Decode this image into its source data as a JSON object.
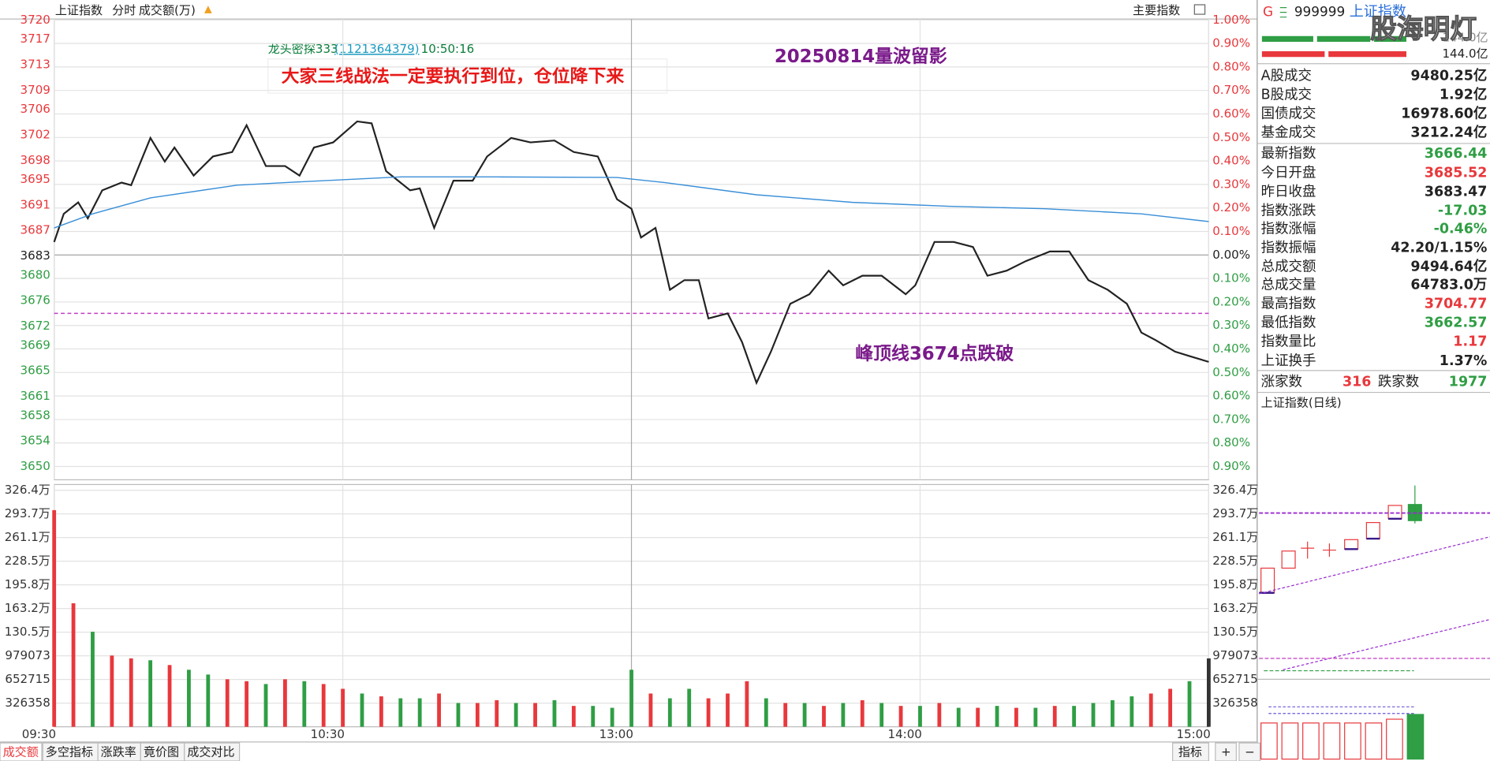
{
  "toolbar": {
    "labels": [
      "上证指数",
      "分时",
      "成交额(万)"
    ],
    "right": "主要指数"
  },
  "quote_header": {
    "flag": "G",
    "code": "999999",
    "name": "上证指数",
    "watermark": "股海明灯",
    "amount": "144.0亿"
  },
  "message": {
    "sender": "龙头密探333",
    "sender_id": "(1121364379)",
    "time": "10:50:16",
    "text": "大家三线战法一定要执行到位，仓位降下来"
  },
  "chart_data": [
    {
      "type": "line",
      "annotations": [
        {
          "text": "20250814量波留影",
          "color": "#7a1a8a"
        },
        {
          "text": "峰顶线3674点跌破",
          "color": "#7a1a8a"
        }
      ],
      "reference_line": {
        "value": 3674,
        "color": "#c23cc2"
      },
      "xlim": [
        0,
        240
      ],
      "ylim": [
        3650,
        3720
      ],
      "yticks": [
        3720,
        3717,
        3713,
        3709,
        3706,
        3702,
        3698,
        3695,
        3691,
        3687,
        3683,
        3680,
        3676,
        3672,
        3669,
        3665,
        3661,
        3658,
        3654,
        3650
      ],
      "y2lim": [
        -0.9,
        1.0
      ],
      "y2ticks": [
        {
          "value": 1.0,
          "label": "1.00%"
        },
        {
          "value": 0.9,
          "label": "0.90%"
        },
        {
          "value": 0.8,
          "label": "0.80%"
        },
        {
          "value": 0.7,
          "label": "0.70%"
        },
        {
          "value": 0.6,
          "label": "0.60%"
        },
        {
          "value": 0.5,
          "label": "0.50%"
        },
        {
          "value": 0.4,
          "label": "0.40%"
        },
        {
          "value": 0.3,
          "label": "0.30%"
        },
        {
          "value": 0.2,
          "label": "0.20%"
        },
        {
          "value": 0.1,
          "label": "0.10%"
        },
        {
          "value": 0,
          "label": "0.00%"
        },
        {
          "value": -0.1,
          "label": "0.10%"
        },
        {
          "value": -0.2,
          "label": "0.20%"
        },
        {
          "value": -0.3,
          "label": "0.30%"
        },
        {
          "value": -0.4,
          "label": "0.40%"
        },
        {
          "value": -0.5,
          "label": "0.50%"
        },
        {
          "value": -0.6,
          "label": "0.60%"
        },
        {
          "value": -0.7,
          "label": "0.70%"
        },
        {
          "value": -0.8,
          "label": "0.80%"
        },
        {
          "value": -0.9,
          "label": "0.90%"
        }
      ],
      "up_color": "#e8383c",
      "down_color": "#2f9e44",
      "grid": true,
      "series": [
        {
          "color": "#222222",
          "x": [
            0,
            2,
            5,
            7,
            10,
            14,
            16,
            20,
            23,
            25,
            29,
            33,
            37,
            40,
            44,
            48,
            51,
            54,
            58,
            63,
            66,
            69,
            74,
            76,
            79,
            83,
            87,
            90,
            95,
            99,
            104,
            108,
            113,
            117,
            120,
            122,
            125,
            128,
            131,
            134,
            136,
            140,
            143,
            146,
            149,
            153,
            157,
            161,
            164,
            168,
            172,
            177,
            179,
            183,
            187,
            191,
            194,
            198,
            202,
            207,
            211,
            215,
            219,
            223,
            226,
            229,
            233,
            236,
            240
          ],
          "values": [
            3685.2,
            3689.6,
            3691.4,
            3688.9,
            3693.3,
            3694.5,
            3694.1,
            3701.5,
            3697.8,
            3700.0,
            3695.6,
            3698.6,
            3699.3,
            3703.5,
            3697.1,
            3697.1,
            3695.6,
            3700.0,
            3700.8,
            3704.1,
            3703.8,
            3696.3,
            3693.3,
            3693.6,
            3687.4,
            3694.8,
            3694.8,
            3698.6,
            3701.5,
            3700.8,
            3701.1,
            3699.3,
            3698.6,
            3691.9,
            3690.4,
            3685.9,
            3687.4,
            3677.7,
            3679.2,
            3679.2,
            3673.2,
            3674.0,
            3669.5,
            3663.1,
            3668.0,
            3675.5,
            3677.0,
            3680.7,
            3678.4,
            3679.9,
            3679.9,
            3677.0,
            3678.4,
            3685.2,
            3685.2,
            3684.4,
            3679.9,
            3680.7,
            3682.2,
            3683.7,
            3683.7,
            3679.2,
            3677.7,
            3675.5,
            3671.0,
            3669.8,
            3668.0,
            3667.3,
            3666.4
          ]
        },
        {
          "color": "#3a8fd8",
          "x": [
            0,
            8,
            20,
            38,
            48,
            72,
            92,
            117,
            127,
            146,
            166,
            186,
            206,
            226,
            240
          ],
          "values": [
            3687.4,
            3689.6,
            3692.1,
            3694.1,
            3694.5,
            3695.4,
            3695.4,
            3695.3,
            3694.5,
            3692.6,
            3691.4,
            3690.8,
            3690.4,
            3689.6,
            3688.4
          ]
        }
      ]
    },
    {
      "type": "bar",
      "xlim": [
        0,
        240
      ],
      "xticks": [
        {
          "value": 0,
          "label": "09:30"
        },
        {
          "value": 60,
          "label": "10:30"
        },
        {
          "value": 120,
          "label": "13:00"
        },
        {
          "value": 180,
          "label": "14:00"
        },
        {
          "value": 240,
          "label": "15:00"
        }
      ],
      "ylim": [
        0,
        3263576
      ],
      "yticks": [
        326358,
        652715,
        979073,
        {
          "value": 1305430,
          "label": "130.5万"
        },
        {
          "value": 1631788,
          "label": "163.2万"
        },
        {
          "value": 1958146,
          "label": "195.8万"
        },
        {
          "value": 2284503,
          "label": "228.5万"
        },
        {
          "value": 2610861,
          "label": "261.1万"
        },
        {
          "value": 2937219,
          "label": "293.7万"
        },
        {
          "value": 3263576,
          "label": "326.4万"
        }
      ],
      "grid": true,
      "x": [
        0,
        4,
        8,
        12,
        16,
        20,
        24,
        28,
        32,
        36,
        40,
        44,
        48,
        52,
        56,
        60,
        64,
        68,
        72,
        76,
        80,
        84,
        88,
        92,
        96,
        100,
        104,
        108,
        112,
        116,
        120,
        124,
        128,
        132,
        136,
        140,
        144,
        148,
        152,
        156,
        160,
        164,
        168,
        172,
        176,
        180,
        184,
        188,
        192,
        196,
        200,
        204,
        208,
        212,
        216,
        220,
        224,
        228,
        232,
        236,
        240
      ],
      "values": [
        2989000,
        1704000,
        1311000,
        983000,
        944000,
        918000,
        852000,
        787000,
        721000,
        656000,
        629000,
        590000,
        656000,
        629000,
        590000,
        524000,
        459000,
        420000,
        393000,
        393000,
        459000,
        328000,
        328000,
        367000,
        328000,
        328000,
        367000,
        288000,
        288000,
        262000,
        787000,
        459000,
        393000,
        524000,
        393000,
        459000,
        629000,
        393000,
        328000,
        328000,
        288000,
        328000,
        367000,
        328000,
        288000,
        288000,
        328000,
        262000,
        262000,
        288000,
        262000,
        262000,
        288000,
        288000,
        328000,
        367000,
        420000,
        459000,
        524000,
        629000,
        944000
      ],
      "colors": [
        "#e8383c",
        "#e8383c",
        "#2f9e44",
        "#e8383c",
        "#e8383c",
        "#2f9e44",
        "#e8383c",
        "#2f9e44",
        "#2f9e44",
        "#e8383c",
        "#e8383c",
        "#2f9e44",
        "#e8383c",
        "#2f9e44",
        "#e8383c",
        "#e8383c",
        "#2f9e44",
        "#e8383c",
        "#2f9e44",
        "#2f9e44",
        "#e8383c",
        "#2f9e44",
        "#e8383c",
        "#e8383c",
        "#2f9e44",
        "#e8383c",
        "#2f9e44",
        "#e8383c",
        "#2f9e44",
        "#2f9e44",
        "#2f9e44",
        "#e8383c",
        "#2f9e44",
        "#2f9e44",
        "#e8383c",
        "#e8383c",
        "#e8383c",
        "#2f9e44",
        "#e8383c",
        "#2f9e44",
        "#e8383c",
        "#2f9e44",
        "#e8383c",
        "#2f9e44",
        "#e8383c",
        "#2f9e44",
        "#e8383c",
        "#2f9e44",
        "#e8383c",
        "#2f9e44",
        "#e8383c",
        "#2f9e44",
        "#e8383c",
        "#2f9e44",
        "#2f9e44",
        "#2f9e44",
        "#2f9e44",
        "#e8383c",
        "#e8383c",
        "#2f9e44",
        "#333333"
      ]
    }
  ],
  "quote_panel": {
    "rows": [
      {
        "label": "A股成交",
        "value": "9480.25亿",
        "color": "#222222"
      },
      {
        "label": "B股成交",
        "value": "1.92亿",
        "color": "#222222"
      },
      {
        "label": "国债成交",
        "value": "16978.60亿",
        "color": "#222222"
      },
      {
        "label": "基金成交",
        "value": "3212.24亿",
        "color": "#222222"
      },
      {
        "label": "最新指数",
        "value": "3666.44",
        "color": "#2f9e44"
      },
      {
        "label": "今日开盘",
        "value": "3685.52",
        "color": "#e8383c"
      },
      {
        "label": "昨日收盘",
        "value": "3683.47",
        "color": "#222222"
      },
      {
        "label": "指数涨跌",
        "value": "-17.03",
        "color": "#2f9e44"
      },
      {
        "label": "指数涨幅",
        "value": "-0.46%",
        "color": "#2f9e44"
      },
      {
        "label": "指数振幅",
        "value": "42.20/1.15%",
        "color": "#222222"
      },
      {
        "label": "总成交额",
        "value": "9494.64亿",
        "color": "#222222"
      },
      {
        "label": "总成交量",
        "value": "64783.0万",
        "color": "#222222"
      },
      {
        "label": "最高指数",
        "value": "3704.77",
        "color": "#e8383c"
      },
      {
        "label": "最低指数",
        "value": "3662.57",
        "color": "#2f9e44"
      },
      {
        "label": "指数量比",
        "value": "1.17",
        "color": "#e8383c"
      },
      {
        "label": "上证换手",
        "value": "1.37%",
        "color": "#222222"
      }
    ],
    "breadth": {
      "up_label": "涨家数",
      "up": "316",
      "down_label": "跌家数",
      "down": "1977"
    },
    "daily_title": "上证指数(日线)"
  },
  "tabs": {
    "left": [
      "成交额",
      "多空指标",
      "涨跌率",
      "竟价图",
      "成交对比"
    ],
    "right": [
      "指标",
      "+",
      "−"
    ]
  }
}
